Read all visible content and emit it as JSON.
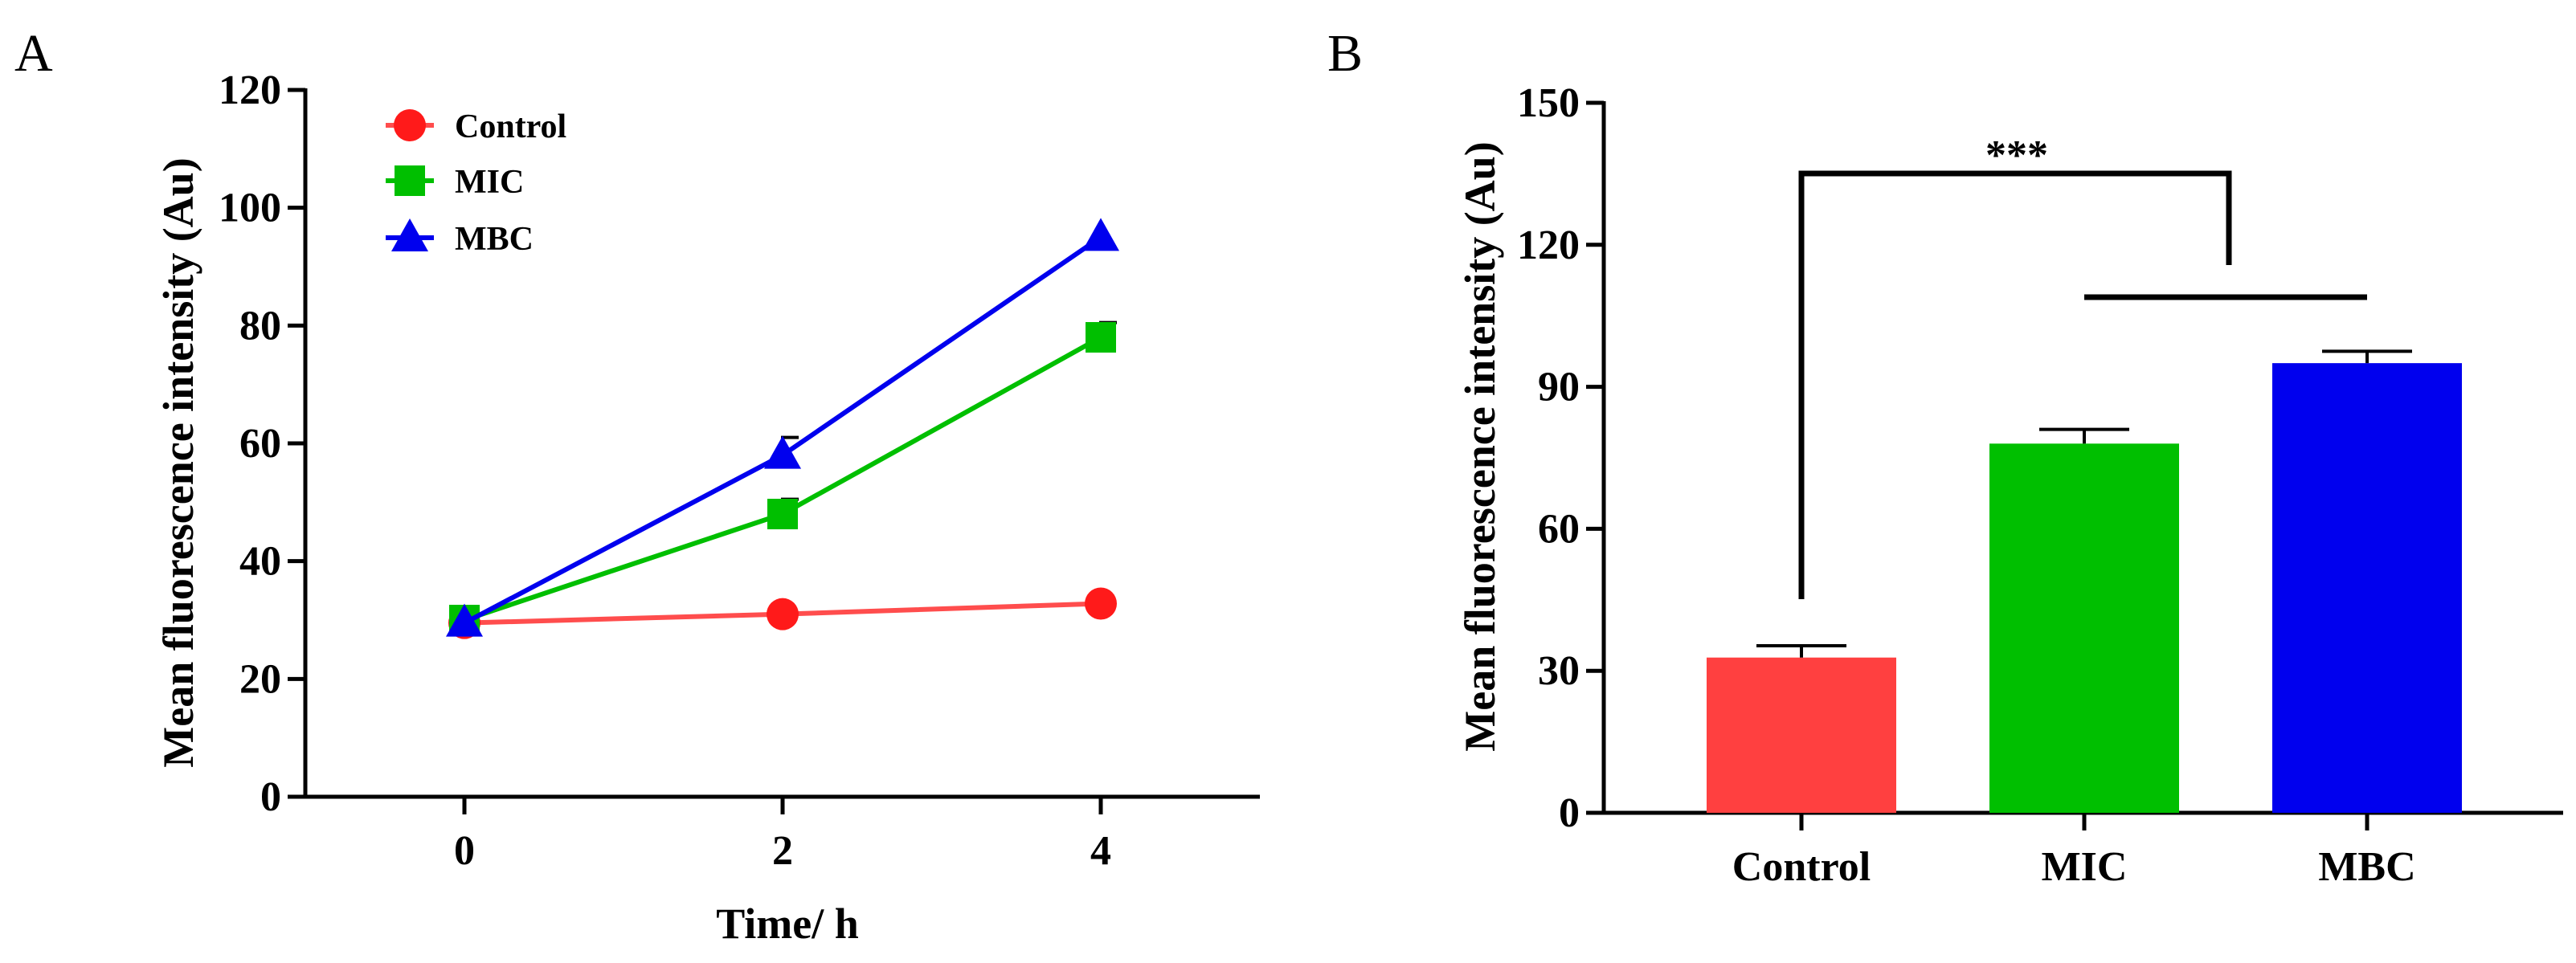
{
  "panels": [
    {
      "letter": "A",
      "ylabel": "Mean fluorescence intensity (Au)",
      "xlabel": "Time/ h",
      "legend_entries": [
        "Control",
        "MIC",
        "MBC"
      ]
    },
    {
      "letter": "B",
      "ylabel": "Mean fluorescence intensity (Au)",
      "significance": "***"
    }
  ],
  "colors": {
    "Control_line": "#ff4d4d",
    "Control_marker": "#ff1a1a",
    "Control_bar": "#ff4040",
    "MIC": "#00bf00",
    "MBC": "#0000ee",
    "axis": "#000000"
  },
  "chart_data": [
    {
      "type": "line",
      "title": "",
      "xlabel": "Time/ h",
      "ylabel": "Mean fluorescence intensity (Au)",
      "x": [
        0,
        2,
        4
      ],
      "xticks": [
        "0",
        "2",
        "4"
      ],
      "xlim": [
        -1,
        5
      ],
      "yticks": [
        "0",
        "20",
        "40",
        "60",
        "80",
        "100",
        "120"
      ],
      "ylim": [
        0,
        120
      ],
      "legend": "top-left",
      "grid": false,
      "series": [
        {
          "name": "Control",
          "values": [
            29.5,
            31,
            32.8
          ],
          "errors": [
            0,
            0,
            0
          ],
          "marker": "circle"
        },
        {
          "name": "MIC",
          "values": [
            30,
            48,
            78
          ],
          "errors": [
            0,
            2.5,
            2.5
          ],
          "marker": "square"
        },
        {
          "name": "MBC",
          "values": [
            29.5,
            58,
            95
          ],
          "errors": [
            0,
            3,
            0
          ],
          "marker": "triangle"
        }
      ]
    },
    {
      "type": "bar",
      "title": "",
      "xlabel": "",
      "ylabel": "Mean fluorescence intensity (Au)",
      "categories": [
        "Control",
        "MIC",
        "MBC"
      ],
      "values": [
        32.8,
        78,
        95
      ],
      "errors": [
        2.5,
        3,
        2.5
      ],
      "yticks": [
        "0",
        "30",
        "60",
        "90",
        "120",
        "150"
      ],
      "ylim": [
        0,
        150
      ],
      "grid": false,
      "annotations": [
        "***"
      ]
    }
  ]
}
